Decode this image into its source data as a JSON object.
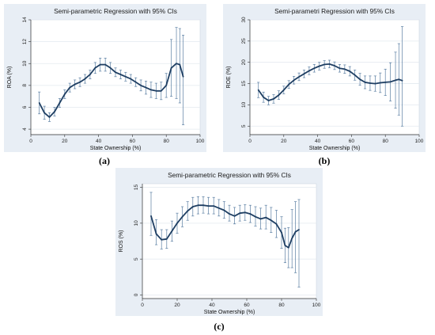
{
  "captions": [
    "(a)",
    "(b)",
    "(c)"
  ],
  "chart_data": [
    {
      "type": "line",
      "title": "Semi-parametric Regression with 95% CIs",
      "xlabel": "State Ownership (%)",
      "ylabel": "ROA (%)",
      "xlim": [
        0,
        100
      ],
      "ylim": [
        3.5,
        14
      ],
      "xticks": [
        0,
        20,
        40,
        60,
        80,
        100
      ],
      "yticks": [
        4,
        6,
        8,
        10,
        12,
        14
      ],
      "grid": true,
      "background": "#e8eef5",
      "line_color": "#1f3f63",
      "ci_color": "#5b7fa3",
      "series": [
        {
          "x": [
            5,
            8,
            11,
            14,
            17,
            20,
            23,
            26,
            29,
            32,
            35,
            38,
            41,
            44,
            47,
            50,
            53,
            56,
            59,
            62,
            65,
            68,
            71,
            74,
            77,
            80,
            83,
            86,
            88,
            90
          ],
          "y": [
            6.4,
            5.5,
            5.1,
            5.6,
            6.4,
            7.2,
            7.8,
            8.1,
            8.3,
            8.6,
            9.0,
            9.6,
            9.9,
            9.9,
            9.6,
            9.2,
            9.0,
            8.8,
            8.6,
            8.3,
            8.0,
            7.8,
            7.6,
            7.5,
            7.5,
            8.0,
            9.6,
            10.0,
            9.9,
            8.8
          ],
          "ci_low": [
            5.4,
            4.9,
            4.7,
            5.2,
            6.0,
            6.8,
            7.4,
            7.7,
            7.9,
            8.2,
            8.6,
            9.1,
            9.3,
            9.3,
            9.1,
            8.8,
            8.6,
            8.4,
            8.2,
            7.9,
            7.5,
            7.2,
            6.9,
            6.8,
            6.7,
            6.9,
            7.0,
            6.8,
            6.4,
            4.4
          ],
          "ci_high": [
            7.4,
            6.1,
            5.5,
            6.0,
            6.8,
            7.6,
            8.2,
            8.5,
            8.7,
            9.0,
            9.4,
            10.1,
            10.5,
            10.5,
            10.1,
            9.6,
            9.4,
            9.2,
            9.0,
            8.7,
            8.5,
            8.4,
            8.3,
            8.2,
            8.3,
            9.1,
            12.2,
            13.3,
            13.2,
            12.6
          ]
        }
      ]
    },
    {
      "type": "line",
      "title": "Semi-parametri Regression with 95% CIs",
      "xlabel": "State Ownership (%)",
      "ylabel": "ROE (%)",
      "xlim": [
        0,
        100
      ],
      "ylim": [
        3,
        30
      ],
      "xticks": [
        0,
        20,
        40,
        60,
        80,
        100
      ],
      "yticks": [
        5,
        10,
        15,
        20,
        25,
        30
      ],
      "grid": true,
      "background": "#e8eef5",
      "line_color": "#1f3f63",
      "ci_color": "#5b7fa3",
      "series": [
        {
          "x": [
            5,
            8,
            11,
            14,
            17,
            20,
            23,
            26,
            29,
            32,
            35,
            38,
            41,
            44,
            47,
            50,
            53,
            56,
            59,
            62,
            65,
            68,
            71,
            74,
            77,
            80,
            83,
            86,
            88,
            90
          ],
          "y": [
            13.5,
            11.8,
            11.0,
            11.4,
            12.3,
            13.5,
            14.8,
            15.8,
            16.6,
            17.3,
            18.0,
            18.6,
            19.1,
            19.5,
            19.6,
            19.2,
            18.6,
            18.4,
            17.9,
            17.0,
            16.0,
            15.3,
            15.1,
            15.0,
            15.2,
            15.3,
            15.4,
            15.8,
            16.0,
            15.7
          ],
          "ci_low": [
            11.7,
            10.6,
            10.0,
            10.4,
            11.3,
            12.6,
            13.9,
            14.9,
            15.7,
            16.4,
            17.1,
            17.7,
            18.2,
            18.6,
            18.7,
            18.3,
            17.7,
            17.4,
            16.8,
            15.8,
            14.6,
            13.8,
            13.4,
            13.2,
            12.9,
            12.2,
            10.9,
            9.2,
            7.6,
            5.0
          ],
          "ci_high": [
            15.3,
            13.0,
            12.0,
            12.4,
            13.3,
            14.4,
            15.7,
            16.7,
            17.5,
            18.2,
            18.9,
            19.5,
            20.0,
            20.4,
            20.5,
            20.1,
            19.5,
            19.4,
            19.0,
            18.2,
            17.4,
            16.8,
            16.8,
            16.8,
            17.5,
            18.4,
            19.9,
            22.4,
            24.4,
            28.4
          ]
        }
      ]
    },
    {
      "type": "line",
      "title": "Semi-parametric Regression with 95% CIs",
      "xlabel": "State Ownership (%)",
      "ylabel": "ROS (%)",
      "xlim": [
        0,
        100
      ],
      "ylim": [
        -0.5,
        15.5
      ],
      "xticks": [
        0,
        20,
        40,
        60,
        80,
        100
      ],
      "yticks": [
        0,
        5,
        10,
        15
      ],
      "grid": true,
      "background": "#e8eef5",
      "line_color": "#1f3f63",
      "ci_color": "#5b7fa3",
      "series": [
        {
          "x": [
            5,
            8,
            11,
            14,
            17,
            20,
            23,
            26,
            29,
            32,
            35,
            38,
            41,
            44,
            47,
            50,
            53,
            56,
            59,
            62,
            65,
            68,
            71,
            74,
            77,
            80,
            82,
            84,
            86,
            88,
            90
          ],
          "y": [
            11.0,
            8.5,
            7.7,
            7.8,
            8.9,
            10.0,
            10.9,
            11.7,
            12.3,
            12.5,
            12.5,
            12.4,
            12.4,
            12.1,
            11.8,
            11.3,
            11.0,
            11.4,
            11.5,
            11.3,
            10.9,
            10.6,
            10.8,
            10.4,
            9.9,
            8.7,
            6.9,
            6.6,
            7.9,
            8.8,
            9.1
          ],
          "ci_low": [
            8.3,
            7.0,
            6.4,
            6.5,
            7.5,
            8.6,
            9.5,
            10.4,
            11.0,
            11.3,
            11.4,
            11.3,
            11.3,
            11.0,
            10.7,
            10.3,
            9.9,
            10.3,
            10.4,
            10.1,
            9.6,
            9.2,
            9.2,
            8.7,
            8.0,
            6.5,
            4.5,
            3.8,
            3.8,
            3.1,
            1.1
          ],
          "ci_high": [
            14.3,
            10.5,
            9.1,
            9.1,
            10.3,
            11.4,
            12.3,
            13.0,
            13.6,
            13.7,
            13.7,
            13.6,
            13.6,
            13.3,
            13.0,
            12.5,
            12.2,
            12.5,
            12.6,
            12.5,
            12.3,
            12.1,
            12.5,
            12.2,
            11.8,
            10.9,
            9.3,
            9.4,
            11.9,
            13.0,
            13.3
          ]
        }
      ]
    }
  ]
}
